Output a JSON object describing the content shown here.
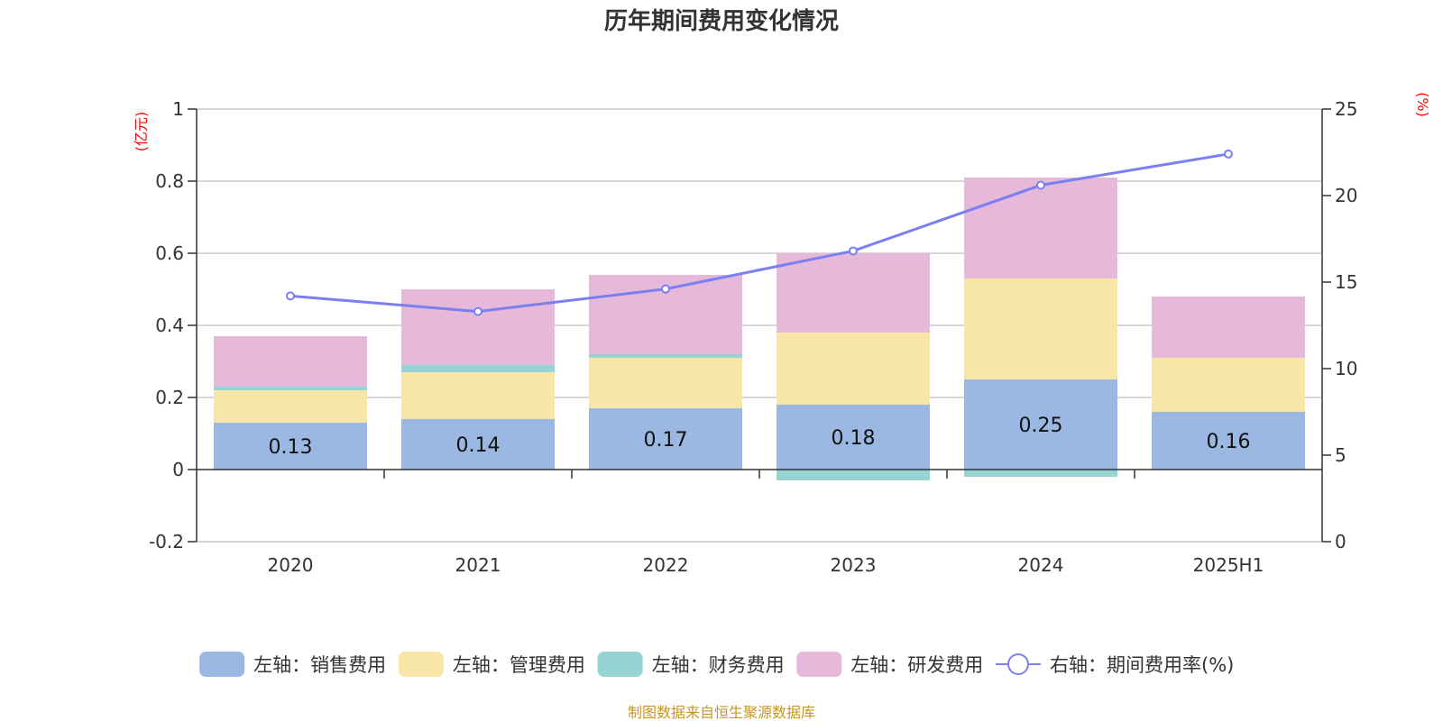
{
  "chart_data": {
    "type": "bar",
    "title": "历年期间费用变化情况",
    "categories": [
      "2020",
      "2021",
      "2022",
      "2023",
      "2024",
      "2025H1"
    ],
    "series": [
      {
        "name": "左轴：销售费用",
        "axis": "left",
        "color": "#9bb8e2",
        "values": [
          0.13,
          0.14,
          0.17,
          0.18,
          0.25,
          0.16
        ],
        "labels": [
          "0.13",
          "0.14",
          "0.17",
          "0.18",
          "0.25",
          "0.16"
        ]
      },
      {
        "name": "左轴：管理费用",
        "axis": "left",
        "color": "#f8e6a8",
        "values": [
          0.09,
          0.13,
          0.14,
          0.2,
          0.28,
          0.15
        ]
      },
      {
        "name": "左轴：财务费用",
        "axis": "left",
        "color": "#96d3d3",
        "values": [
          0.01,
          0.02,
          0.01,
          -0.03,
          -0.02,
          0.0
        ]
      },
      {
        "name": "左轴：研发费用",
        "axis": "left",
        "color": "#e6b8d9",
        "values": [
          0.14,
          0.21,
          0.22,
          0.22,
          0.28,
          0.17
        ]
      },
      {
        "name": "右轴：期间费用率(%)",
        "axis": "right",
        "type": "line",
        "color": "#7b7ff0",
        "values": [
          14.2,
          13.3,
          14.6,
          16.8,
          20.6,
          22.4
        ]
      }
    ],
    "left_axis": {
      "unit": "(亿元)",
      "ylim": [
        -0.2,
        1
      ],
      "ticks": [
        -0.2,
        0,
        0.2,
        0.4,
        0.6,
        0.8,
        1
      ],
      "tick_labels": [
        "-0.2",
        "0",
        "0.2",
        "0.4",
        "0.6",
        "0.8",
        "1"
      ]
    },
    "right_axis": {
      "unit": "(%)",
      "ylim": [
        0,
        25
      ],
      "ticks": [
        0,
        5,
        10,
        15,
        20,
        25
      ],
      "tick_labels": [
        "0",
        "5",
        "10",
        "15",
        "20",
        "25"
      ]
    },
    "grid": true,
    "legend_position": "bottom"
  },
  "source_note": "制图数据来自恒生聚源数据库"
}
